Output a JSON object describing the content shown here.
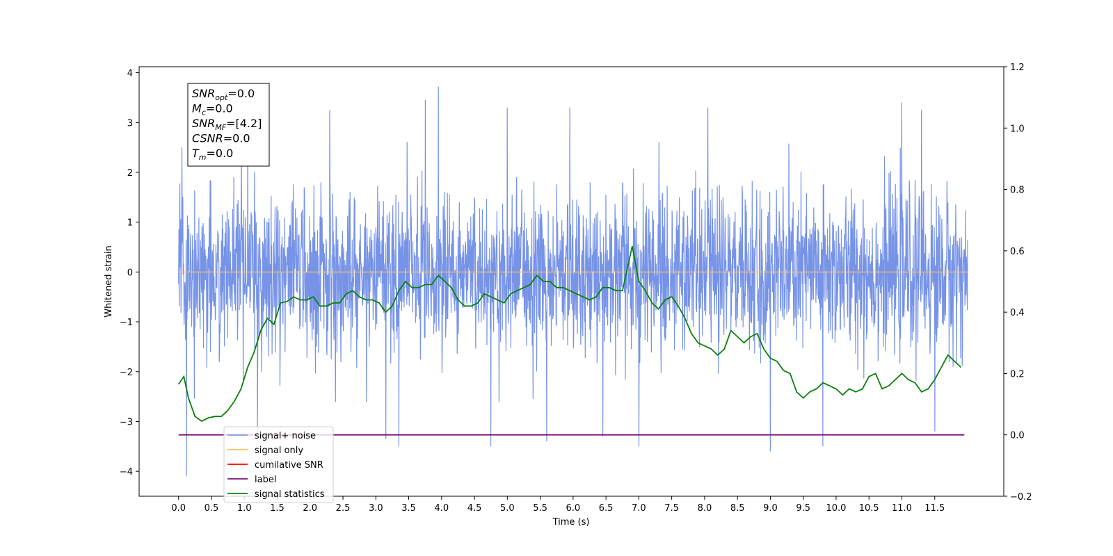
{
  "chart_data": {
    "type": "line",
    "xlabel": "Time (s)",
    "ylabel": "Whitened strain",
    "xlim": [
      -0.6,
      12.55
    ],
    "ylim": [
      -4.5,
      4.12
    ],
    "y2lim": [
      -0.2,
      1.2
    ],
    "x_ticks": [
      "0.0",
      "0.5",
      "1.0",
      "1.5",
      "2.0",
      "2.5",
      "3.0",
      "3.5",
      "4.0",
      "4.5",
      "5.0",
      "5.5",
      "6.0",
      "6.5",
      "7.0",
      "7.5",
      "8.0",
      "8.5",
      "9.0",
      "9.5",
      "10.0",
      "10.5",
      "11.0",
      "11.5"
    ],
    "y_ticks": [
      "−4",
      "−3",
      "−2",
      "−1",
      "0",
      "1",
      "2",
      "3",
      "4"
    ],
    "y2_ticks": [
      "−0.2",
      "0.0",
      "0.2",
      "0.4",
      "0.6",
      "0.8",
      "1.0",
      "1.2"
    ],
    "grid": false,
    "legend_position": "lower-left",
    "info_box": {
      "lines": [
        {
          "sym": "SNR",
          "sub": "opt",
          "value": "=0.0"
        },
        {
          "sym": "M",
          "sub": "c",
          "value": "=0.0"
        },
        {
          "sym": "SNR",
          "sub": "MF",
          "value": "=[4.2]"
        },
        {
          "sym": "CSNR",
          "sub": "",
          "value": "=0.0"
        },
        {
          "sym": "T",
          "sub": "m",
          "value": "=0.0"
        }
      ]
    },
    "noise_envelope": {
      "x_range": [
        0.0,
        12.0
      ],
      "typical_amplitude": 1.8,
      "peak_max": 3.72,
      "peak_min": -4.1,
      "notable_peaks": [
        {
          "x": 0.05,
          "y": 2.5
        },
        {
          "x": 0.12,
          "y": -4.1
        },
        {
          "x": 1.05,
          "y": 3.0
        },
        {
          "x": 1.2,
          "y": -3.3
        },
        {
          "x": 2.3,
          "y": 3.25
        },
        {
          "x": 3.15,
          "y": -3.35
        },
        {
          "x": 3.35,
          "y": -3.5
        },
        {
          "x": 3.75,
          "y": 3.45
        },
        {
          "x": 3.95,
          "y": 3.72
        },
        {
          "x": 4.75,
          "y": -3.5
        },
        {
          "x": 5.0,
          "y": 3.3
        },
        {
          "x": 5.6,
          "y": -3.4
        },
        {
          "x": 5.95,
          "y": 3.3
        },
        {
          "x": 6.45,
          "y": -3.3
        },
        {
          "x": 7.0,
          "y": -3.5
        },
        {
          "x": 8.05,
          "y": 3.3
        },
        {
          "x": 9.0,
          "y": -3.6
        },
        {
          "x": 9.8,
          "y": -3.5
        },
        {
          "x": 11.0,
          "y": 3.4
        },
        {
          "x": 11.3,
          "y": 3.25
        },
        {
          "x": 11.5,
          "y": -3.2
        }
      ]
    },
    "series": [
      {
        "name": "signal+ noise",
        "color": "#6f8de6",
        "axis": "left",
        "style": "dense oscillating noise"
      },
      {
        "name": "signal only",
        "color": "#ffbf5f",
        "axis": "left",
        "x": [
          0.0,
          12.0
        ],
        "y": [
          0.0,
          0.0
        ]
      },
      {
        "name": "cumilative SNR",
        "color": "#ff0000",
        "axis": "left",
        "x": [],
        "y": []
      },
      {
        "name": "label",
        "color": "#7b0f7b",
        "axis": "right",
        "x": [
          0.0,
          11.95
        ],
        "y": [
          0.0,
          0.0
        ]
      },
      {
        "name": "signal statistics",
        "color": "#0a800a",
        "axis": "right",
        "x": [
          0.0,
          0.08,
          0.15,
          0.25,
          0.35,
          0.45,
          0.55,
          0.65,
          0.75,
          0.85,
          0.95,
          1.05,
          1.15,
          1.25,
          1.35,
          1.45,
          1.55,
          1.65,
          1.75,
          1.85,
          1.95,
          2.05,
          2.15,
          2.25,
          2.35,
          2.45,
          2.55,
          2.65,
          2.75,
          2.85,
          2.95,
          3.05,
          3.15,
          3.25,
          3.35,
          3.45,
          3.55,
          3.65,
          3.75,
          3.85,
          3.95,
          4.05,
          4.15,
          4.25,
          4.35,
          4.45,
          4.55,
          4.65,
          4.75,
          4.85,
          4.95,
          5.05,
          5.15,
          5.25,
          5.35,
          5.45,
          5.55,
          5.65,
          5.75,
          5.85,
          5.95,
          6.05,
          6.15,
          6.25,
          6.35,
          6.45,
          6.55,
          6.65,
          6.75,
          6.9,
          7.0,
          7.1,
          7.2,
          7.3,
          7.4,
          7.5,
          7.6,
          7.7,
          7.8,
          7.9,
          8.0,
          8.1,
          8.2,
          8.3,
          8.4,
          8.5,
          8.6,
          8.7,
          8.8,
          8.9,
          9.0,
          9.1,
          9.2,
          9.3,
          9.4,
          9.5,
          9.6,
          9.7,
          9.8,
          9.9,
          10.0,
          10.1,
          10.2,
          10.3,
          10.4,
          10.5,
          10.6,
          10.7,
          10.8,
          10.9,
          11.0,
          11.1,
          11.2,
          11.3,
          11.4,
          11.5,
          11.6,
          11.7,
          11.8,
          11.9
        ],
        "y": [
          0.165,
          0.19,
          0.12,
          0.06,
          0.045,
          0.055,
          0.06,
          0.06,
          0.08,
          0.11,
          0.15,
          0.22,
          0.27,
          0.34,
          0.38,
          0.36,
          0.43,
          0.435,
          0.45,
          0.44,
          0.44,
          0.45,
          0.42,
          0.42,
          0.43,
          0.43,
          0.46,
          0.47,
          0.45,
          0.44,
          0.44,
          0.43,
          0.4,
          0.42,
          0.47,
          0.5,
          0.48,
          0.48,
          0.49,
          0.49,
          0.52,
          0.5,
          0.48,
          0.44,
          0.42,
          0.42,
          0.43,
          0.46,
          0.45,
          0.44,
          0.43,
          0.46,
          0.47,
          0.48,
          0.49,
          0.52,
          0.5,
          0.5,
          0.48,
          0.48,
          0.47,
          0.46,
          0.45,
          0.44,
          0.45,
          0.48,
          0.48,
          0.47,
          0.47,
          0.615,
          0.5,
          0.47,
          0.43,
          0.41,
          0.44,
          0.45,
          0.42,
          0.38,
          0.33,
          0.3,
          0.29,
          0.28,
          0.26,
          0.28,
          0.34,
          0.32,
          0.3,
          0.32,
          0.33,
          0.28,
          0.25,
          0.24,
          0.21,
          0.2,
          0.14,
          0.12,
          0.14,
          0.15,
          0.17,
          0.16,
          0.15,
          0.13,
          0.15,
          0.14,
          0.15,
          0.19,
          0.2,
          0.15,
          0.16,
          0.18,
          0.2,
          0.18,
          0.17,
          0.14,
          0.15,
          0.18,
          0.22,
          0.26,
          0.24,
          0.22
        ]
      }
    ]
  }
}
